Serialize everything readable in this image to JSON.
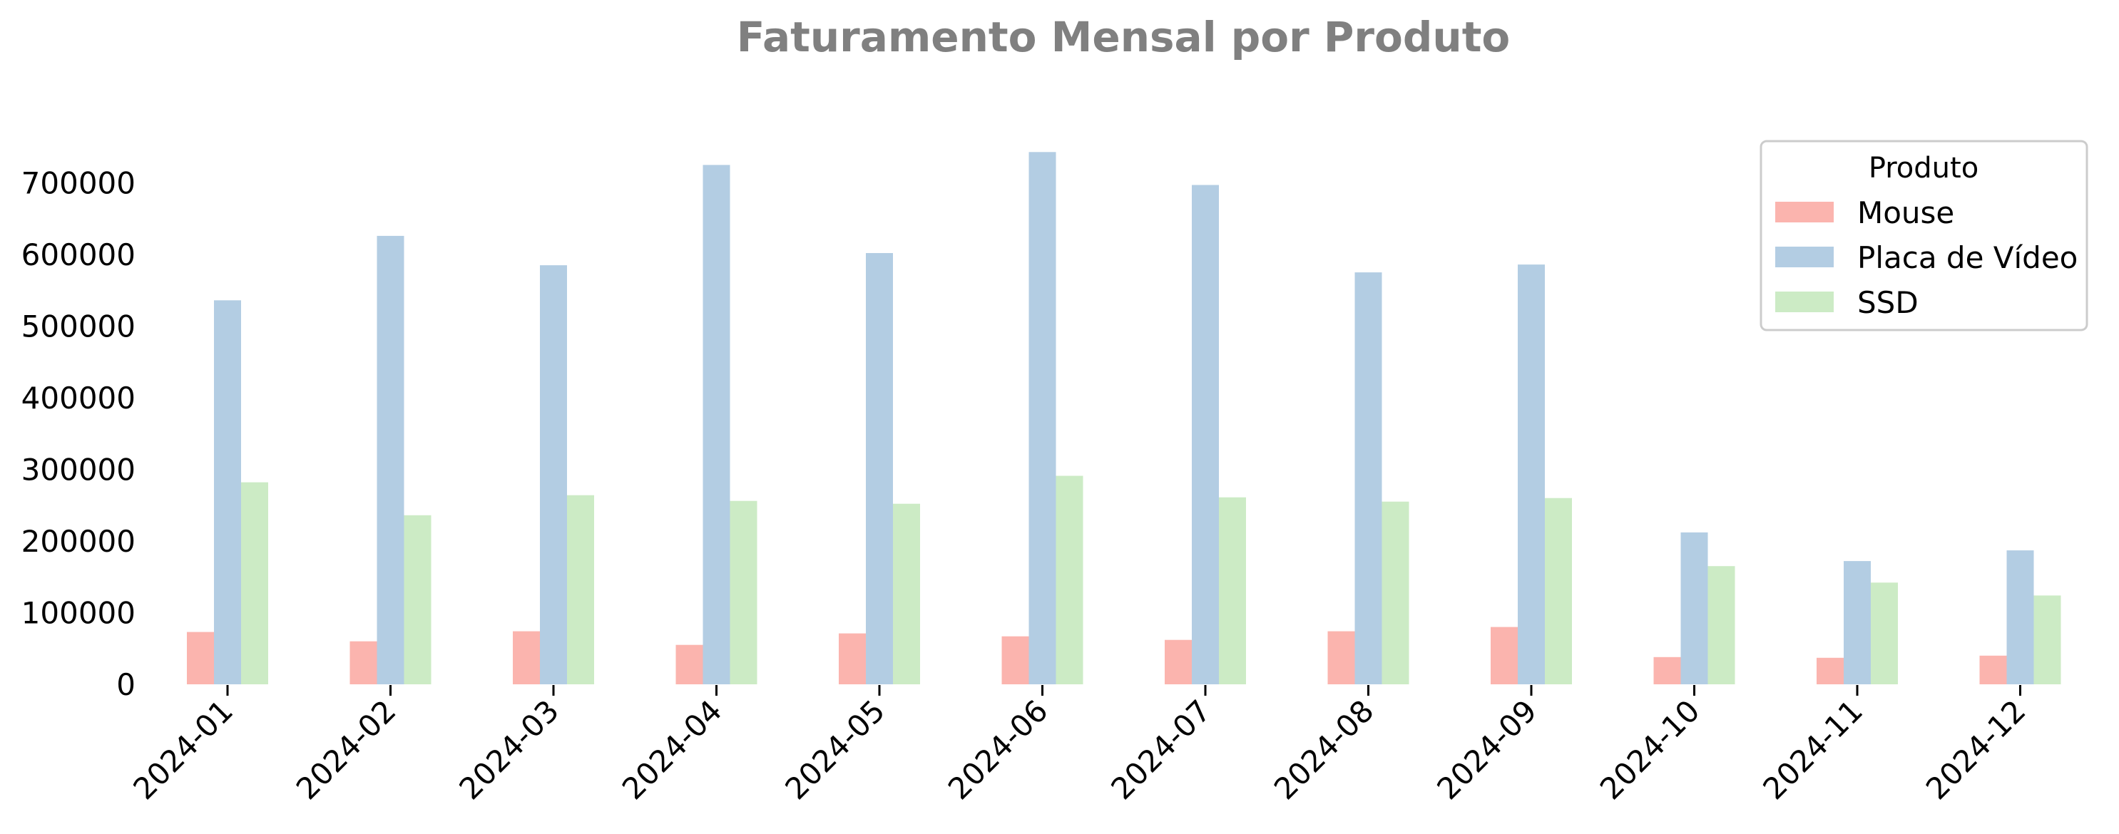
{
  "chart_data": {
    "type": "bar",
    "title": "Faturamento Mensal por Produto",
    "xlabel": "",
    "ylabel": "",
    "ylim": [
      0,
      740000
    ],
    "yticks": [
      "0",
      "100000",
      "200000",
      "300000",
      "400000",
      "500000",
      "600000",
      "700000"
    ],
    "grid": false,
    "legend_title": "Produto",
    "legend_position": "top-right",
    "categories": [
      "2024-01",
      "2024-02",
      "2024-03",
      "2024-04",
      "2024-05",
      "2024-06",
      "2024-07",
      "2024-08",
      "2024-09",
      "2024-10",
      "2024-11",
      "2024-12"
    ],
    "series": [
      {
        "name": "Mouse",
        "color": "#fbb4ae",
        "values": [
          73000,
          60000,
          74000,
          55000,
          71000,
          67000,
          62000,
          74000,
          80000,
          38000,
          37000,
          40000
        ]
      },
      {
        "name": "Placa de Vídeo",
        "color": "#b3cde3",
        "values": [
          536000,
          626000,
          585000,
          725000,
          602000,
          743000,
          697000,
          575000,
          586000,
          212000,
          172000,
          187000
        ]
      },
      {
        "name": "SSD",
        "color": "#ccebc5",
        "values": [
          282000,
          236000,
          264000,
          256000,
          252000,
          291000,
          261000,
          255000,
          260000,
          165000,
          142000,
          124000
        ]
      }
    ]
  }
}
